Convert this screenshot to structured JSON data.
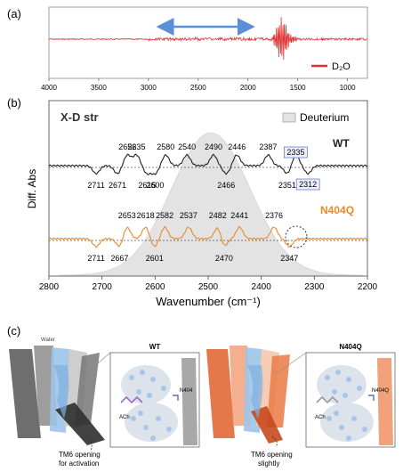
{
  "panels": {
    "a": {
      "letter": "(a)",
      "legend": "D₂O",
      "legend_color": "#e03030",
      "ticks": [
        "4000",
        "3500",
        "3000",
        "2500",
        "2000",
        "1500",
        "1000"
      ],
      "tick_values": [
        4000,
        3500,
        3000,
        2500,
        2000,
        1500,
        1000
      ],
      "xlim": [
        4000,
        800
      ],
      "arrow_color": "#5b8fd8",
      "arrow_span": [
        2900,
        1950
      ]
    },
    "b": {
      "letter": "(b)",
      "title": "X-D str",
      "legend": "Deuterium",
      "ylabel": "Diff. Abs",
      "xlabel": "Wavenumber (cm⁻¹)",
      "ticks": [
        "2800",
        "2700",
        "2600",
        "2500",
        "2400",
        "2300",
        "2200"
      ],
      "tick_values": [
        2800,
        2700,
        2600,
        2500,
        2400,
        2300,
        2200
      ],
      "xlim": [
        2800,
        2200
      ],
      "wt_label": "WT",
      "mutant_label": "N404Q",
      "wt_color": "#222222",
      "mutant_color": "#ea8a2c",
      "wt_peaks_up": [
        {
          "x": 2652,
          "label": "2652"
        },
        {
          "x": 2635,
          "label": "2635"
        },
        {
          "x": 2580,
          "label": "2580"
        },
        {
          "x": 2540,
          "label": "2540"
        },
        {
          "x": 2490,
          "label": "2490"
        },
        {
          "x": 2446,
          "label": "2446"
        },
        {
          "x": 2387,
          "label": "2387"
        },
        {
          "x": 2335,
          "label": "2335",
          "boxed": true
        }
      ],
      "wt_peaks_down": [
        {
          "x": 2711,
          "label": "2711"
        },
        {
          "x": 2671,
          "label": "2671"
        },
        {
          "x": 2615,
          "label": "2615"
        },
        {
          "x": 2600,
          "label": "2600"
        },
        {
          "x": 2466,
          "label": "2466"
        },
        {
          "x": 2351,
          "label": "2351"
        },
        {
          "x": 2312,
          "label": "2312",
          "boxed": true
        }
      ],
      "mut_peaks_up": [
        {
          "x": 2653,
          "label": "2653"
        },
        {
          "x": 2618,
          "label": "2618"
        },
        {
          "x": 2582,
          "label": "2582"
        },
        {
          "x": 2537,
          "label": "2537"
        },
        {
          "x": 2482,
          "label": "2482"
        },
        {
          "x": 2441,
          "label": "2441"
        },
        {
          "x": 2376,
          "label": "2376"
        }
      ],
      "mut_peaks_down": [
        {
          "x": 2711,
          "label": "2711"
        },
        {
          "x": 2667,
          "label": "2667"
        },
        {
          "x": 2601,
          "label": "2601"
        },
        {
          "x": 2470,
          "label": "2470"
        },
        {
          "x": 2347,
          "label": "2347"
        }
      ]
    },
    "c": {
      "letter": "(c)",
      "water_label": "Water",
      "left_title": "WT",
      "right_title": "N404Q",
      "left_caption_1": "TM6 opening",
      "left_caption_2": "for activation",
      "right_caption_1": "TM6 opening",
      "right_caption_2": "slightly",
      "ach_label": "ACh",
      "n404_label": "N404",
      "n404q_label": "N404Q"
    }
  }
}
